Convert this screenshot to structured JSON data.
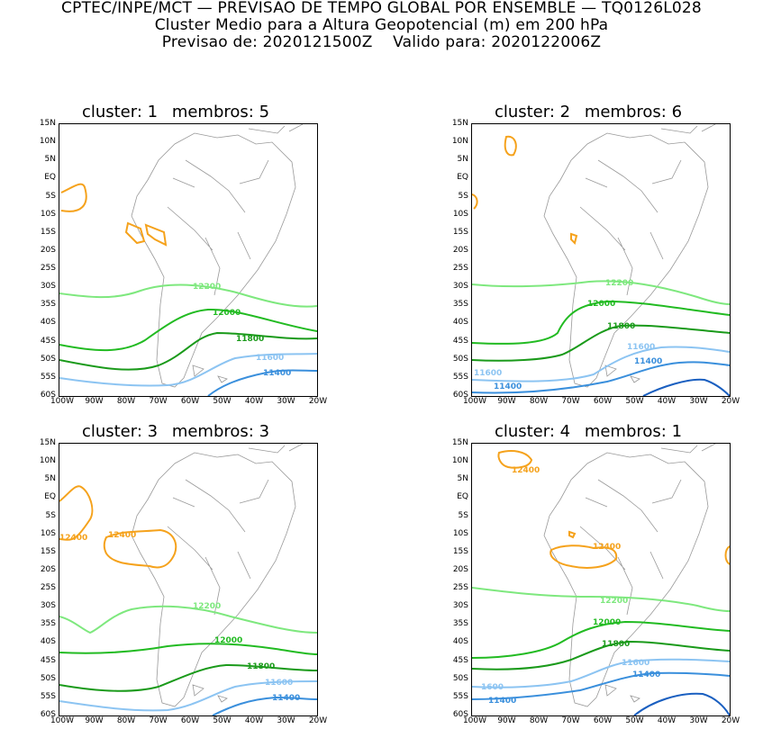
{
  "header": {
    "line1": "CPTEC/INPE/MCT — PREVISAO DE TEMPO GLOBAL POR ENSEMBLE — TQ0126L028",
    "line2": "Cluster Medio para a Altura Geopotencial (m) em 200 hPa",
    "line3_a": "Previsao de: 2020121500Z",
    "line3_b": "Valido para: 2020122006Z"
  },
  "axes": {
    "lat_labels": [
      "15N",
      "10N",
      "5N",
      "EQ",
      "5S",
      "10S",
      "15S",
      "20S",
      "25S",
      "30S",
      "35S",
      "40S",
      "45S",
      "50S",
      "55S",
      "60S"
    ],
    "lon_labels": [
      "100W",
      "90W",
      "80W",
      "70W",
      "60W",
      "50W",
      "40W",
      "30W",
      "20W"
    ]
  },
  "colors": {
    "c12400": "#f5a21c",
    "c12200": "#7ee87e",
    "c12000": "#22bb22",
    "c11800": "#1a9a1a",
    "c11600": "#8cc4f2",
    "c11400": "#3a8fdc",
    "c11200": "#1a5fc0",
    "coast": "#999999"
  },
  "panels": [
    {
      "cluster_label": "cluster:",
      "cluster": "1",
      "members_label": "membros:",
      "members": "5",
      "labels": {
        "l12200": "12200",
        "l12000": "12000",
        "l11800": "11800",
        "l11600": "11600",
        "l11400": "11400"
      }
    },
    {
      "cluster_label": "cluster:",
      "cluster": "2",
      "members_label": "membros:",
      "members": "6",
      "labels": {
        "l12200": "12200",
        "l12000": "12000",
        "l11800": "11800",
        "l11600": "11600",
        "l11400": "11400",
        "l11600b": "11600",
        "l11400b": "11400"
      }
    },
    {
      "cluster_label": "cluster:",
      "cluster": "3",
      "members_label": "membros:",
      "members": "3",
      "labels": {
        "l12400a": "12400",
        "l12400b": "12400",
        "l12200": "12200",
        "l12000": "12000",
        "l11800": "11800",
        "l11600": "11600",
        "l11400": "11400"
      }
    },
    {
      "cluster_label": "cluster:",
      "cluster": "4",
      "members_label": "membros:",
      "members": "1",
      "labels": {
        "l12400a": "12400",
        "l12400b": "12400",
        "l12200": "12200",
        "l12000": "12000",
        "l11800": "11800",
        "l11600": "11600",
        "l11400": "11400",
        "l11600b": "1600",
        "l11400b": "11400"
      }
    }
  ]
}
